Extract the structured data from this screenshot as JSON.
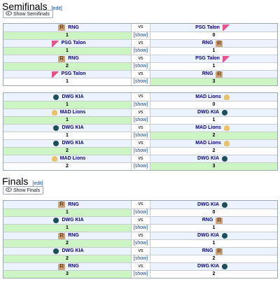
{
  "sections": [
    {
      "title": "Semifinals",
      "edit_label": "edit",
      "show_label": "Show Semifinals",
      "tables": [
        {
          "games": [
            {
              "team1": "RNG",
              "team1_logo": "rng-logo",
              "vs": "vs",
              "team2": "PSG Talon",
              "team2_logo": "psg-logo",
              "score1": "1",
              "show": "[show]",
              "score2": "0",
              "winner": 1
            },
            {
              "team1": "PSG Talon",
              "team1_logo": "psg-logo",
              "vs": "vs",
              "team2": "RNG",
              "team2_logo": "rng-logo",
              "score1": "1",
              "show": "[show]",
              "score2": "1",
              "winner": 1
            },
            {
              "team1": "RNG",
              "team1_logo": "rng-logo",
              "vs": "vs",
              "team2": "PSG Talon",
              "team2_logo": "psg-logo",
              "score1": "2",
              "show": "[show]",
              "score2": "1",
              "winner": 1
            },
            {
              "team1": "PSG Talon",
              "team1_logo": "psg-logo",
              "vs": "vs",
              "team2": "RNG",
              "team2_logo": "rng-logo",
              "score1": "1",
              "show": "[show]",
              "score2": "3",
              "winner": 2
            }
          ]
        },
        {
          "games": [
            {
              "team1": "DWG KIA",
              "team1_logo": "dwg-logo",
              "vs": "vs",
              "team2": "MAD Lions",
              "team2_logo": "mad-logo",
              "score1": "1",
              "show": "[show]",
              "score2": "0",
              "winner": 1
            },
            {
              "team1": "MAD Lions",
              "team1_logo": "mad-logo",
              "vs": "vs",
              "team2": "DWG KIA",
              "team2_logo": "dwg-logo",
              "score1": "1",
              "show": "[show]",
              "score2": "1",
              "winner": 1
            },
            {
              "team1": "DWG KIA",
              "team1_logo": "dwg-logo",
              "vs": "vs",
              "team2": "MAD Lions",
              "team2_logo": "mad-logo",
              "score1": "1",
              "show": "[show]",
              "score2": "2",
              "winner": 2
            },
            {
              "team1": "DWG KIA",
              "team1_logo": "dwg-logo",
              "vs": "vs",
              "team2": "MAD Lions",
              "team2_logo": "mad-logo",
              "score1": "2",
              "show": "[show]",
              "score2": "2",
              "winner": 1
            },
            {
              "team1": "MAD Lions",
              "team1_logo": "mad-logo",
              "vs": "vs",
              "team2": "DWG KIA",
              "team2_logo": "dwg-logo",
              "score1": "2",
              "show": "[show]",
              "score2": "3",
              "winner": 2
            }
          ]
        }
      ]
    },
    {
      "title": "Finals",
      "edit_label": "edit",
      "show_label": "Show Finals",
      "tables": [
        {
          "games": [
            {
              "team1": "RNG",
              "team1_logo": "rng-logo",
              "vs": "vs",
              "team2": "DWG KIA",
              "team2_logo": "dwg-logo",
              "score1": "1",
              "show": "[show]",
              "score2": "0",
              "winner": 1
            },
            {
              "team1": "DWG KIA",
              "team1_logo": "dwg-logo",
              "vs": "vs",
              "team2": "RNG",
              "team2_logo": "rng-logo",
              "score1": "1",
              "show": "[show]",
              "score2": "1",
              "winner": 1
            },
            {
              "team1": "RNG",
              "team1_logo": "rng-logo",
              "vs": "vs",
              "team2": "DWG KIA",
              "team2_logo": "dwg-logo",
              "score1": "2",
              "show": "[show]",
              "score2": "1",
              "winner": 1
            },
            {
              "team1": "DWG KIA",
              "team1_logo": "dwg-logo",
              "vs": "vs",
              "team2": "RNG",
              "team2_logo": "rng-logo",
              "score1": "2",
              "show": "[show]",
              "score2": "2",
              "winner": 1
            },
            {
              "team1": "RNG",
              "team1_logo": "rng-logo",
              "vs": "vs",
              "team2": "DWG KIA",
              "team2_logo": "dwg-logo",
              "score1": "3",
              "show": "[show]",
              "score2": "2",
              "winner": 1
            }
          ]
        }
      ]
    }
  ],
  "colors": {
    "win_bg": "#cdf5c3",
    "team_bg": "#eaf3ff",
    "link": "#0645ad"
  }
}
